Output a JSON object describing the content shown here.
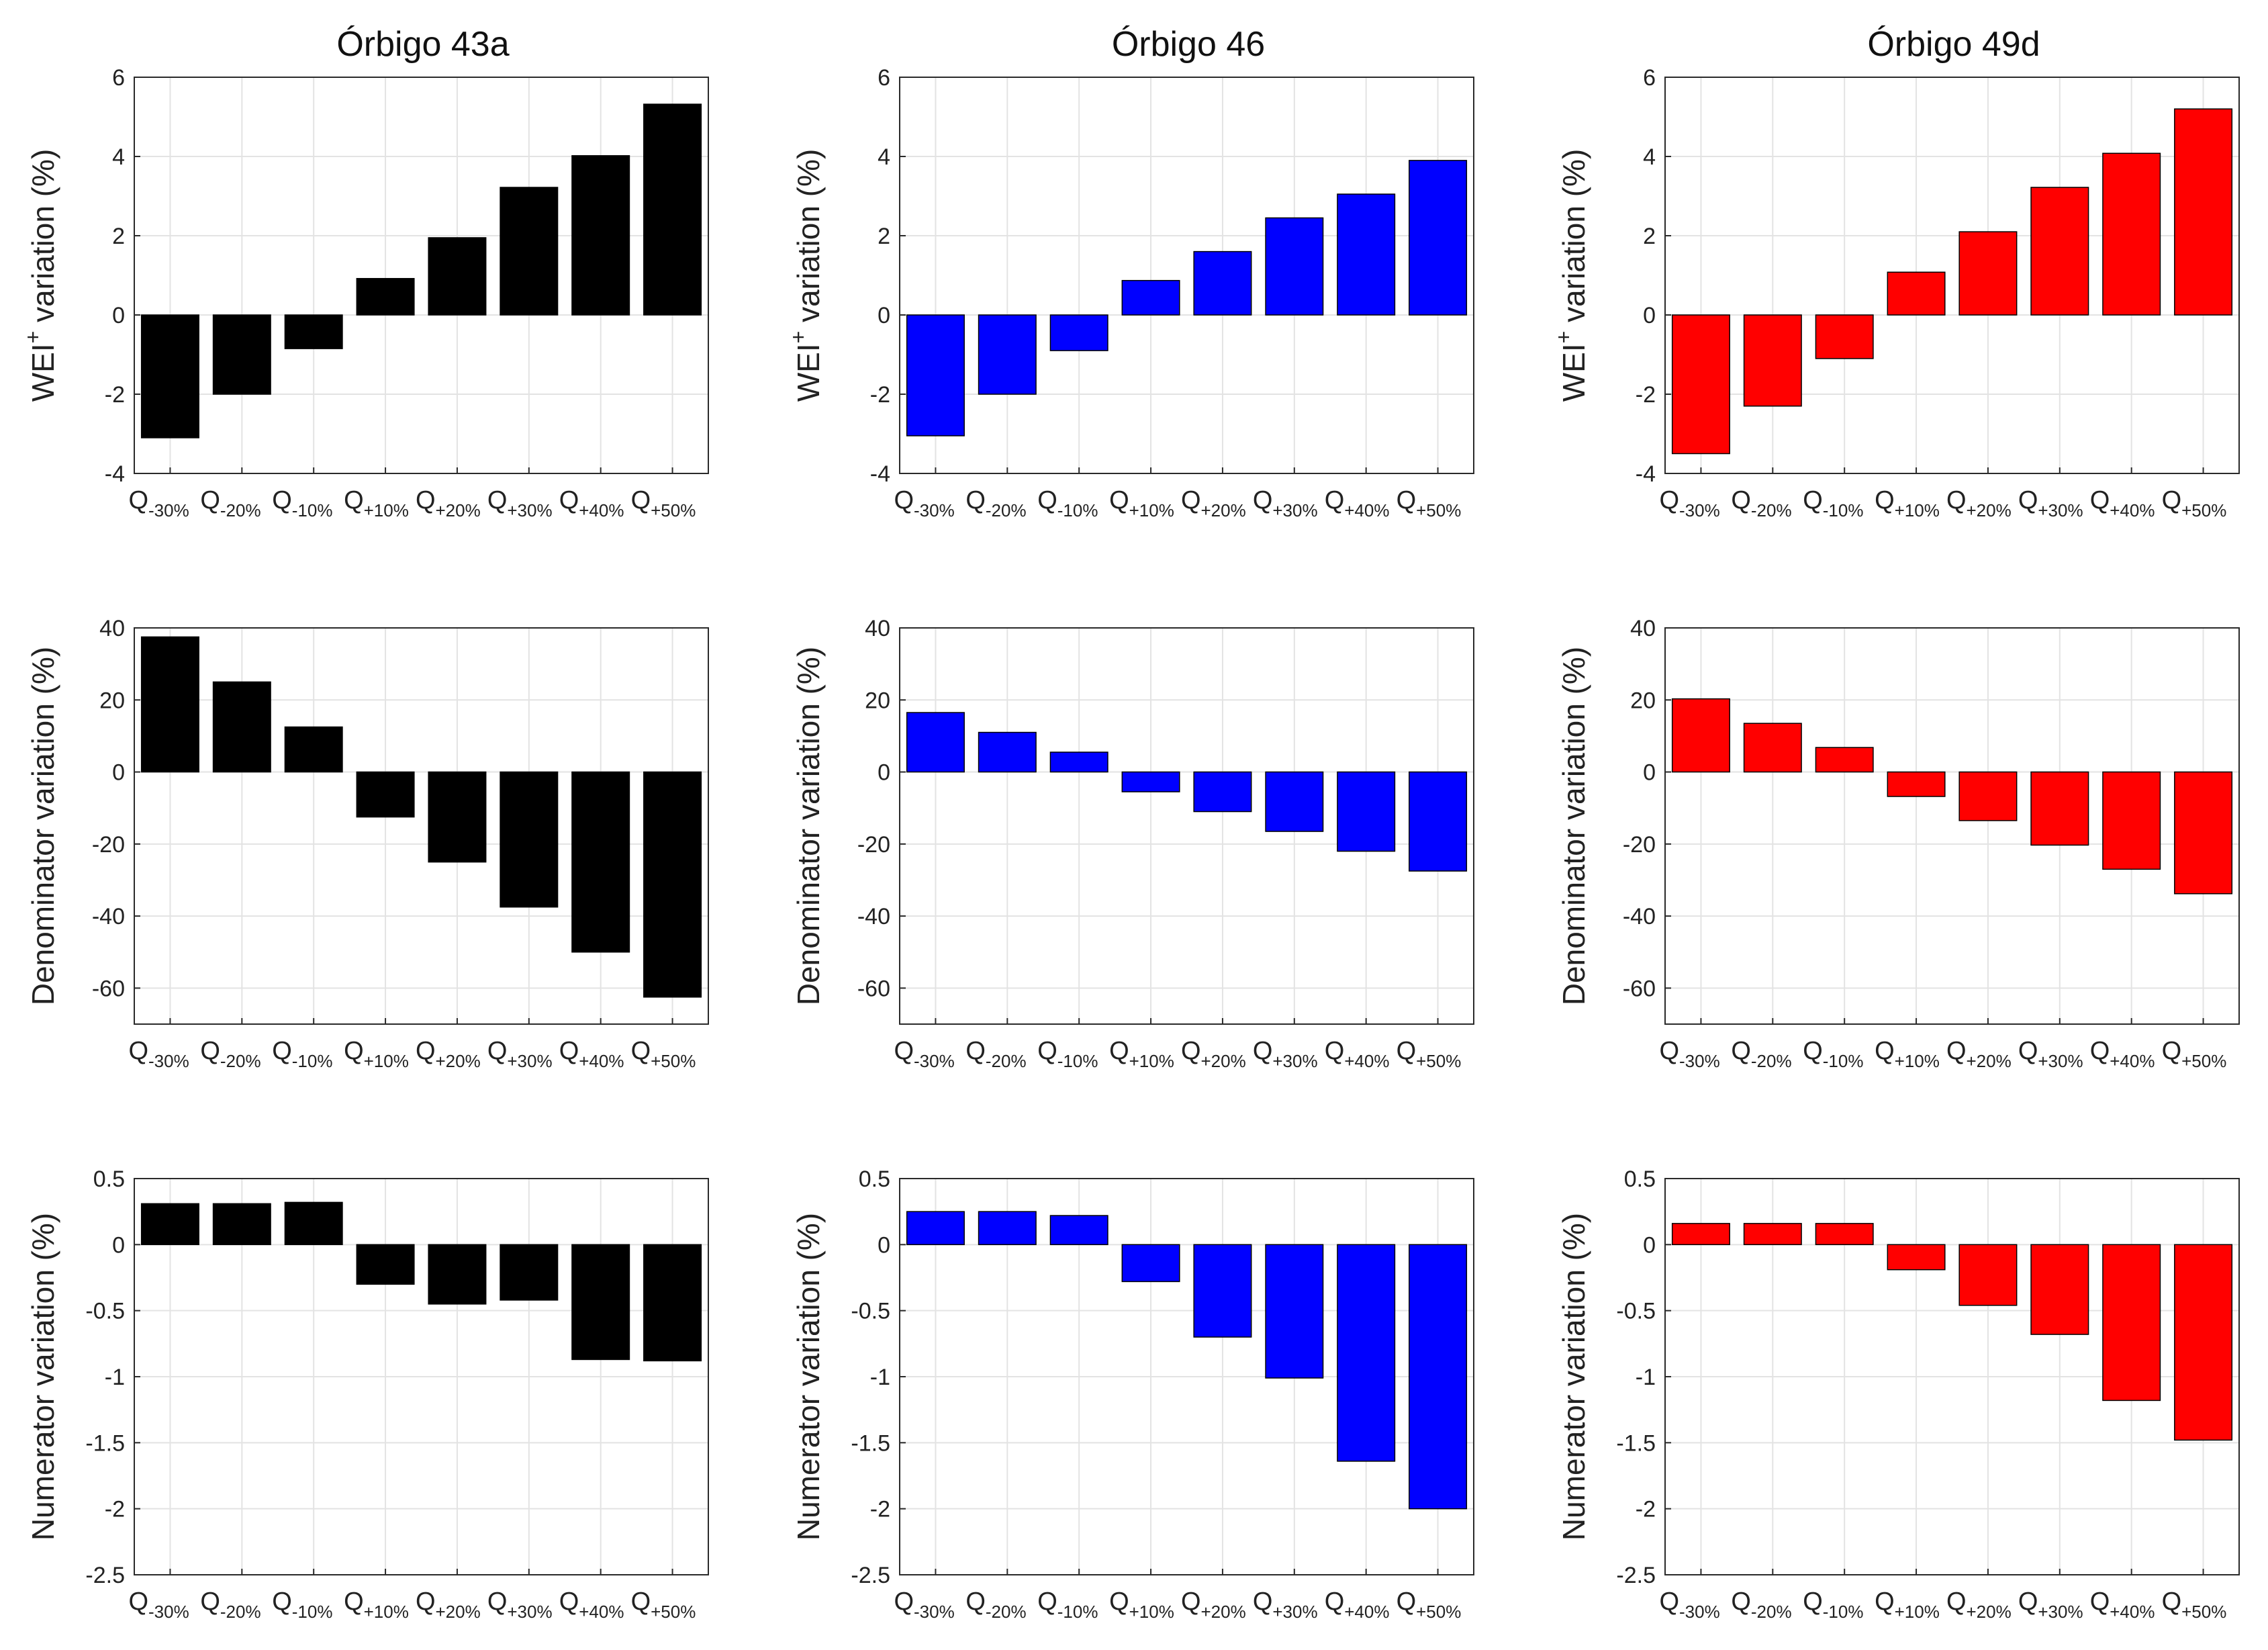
{
  "columns": [
    {
      "title": "Órbigo 43a",
      "color": "#000000"
    },
    {
      "title": "Órbigo 46",
      "color": "#0000ff"
    },
    {
      "title": "Órbigo 49d",
      "color": "#ff0000"
    }
  ],
  "category_labels": [
    {
      "base": "Q",
      "sub": "-30%"
    },
    {
      "base": "Q",
      "sub": "-20%"
    },
    {
      "base": "Q",
      "sub": "-10%"
    },
    {
      "base": "Q",
      "sub": "+10%"
    },
    {
      "base": "Q",
      "sub": "+20%"
    },
    {
      "base": "Q",
      "sub": "+30%"
    },
    {
      "base": "Q",
      "sub": "+40%"
    },
    {
      "base": "Q",
      "sub": "+50%"
    }
  ],
  "rows": [
    {
      "ylabel": {
        "pre": "WEI",
        "sup": "+",
        "post": " variation (%)"
      },
      "ylim": [
        -4,
        6
      ],
      "yticks": [
        -4,
        -2,
        0,
        2,
        4,
        6
      ],
      "ytick_labels": [
        "-4",
        "-2",
        "0",
        "2",
        "4",
        "6"
      ]
    },
    {
      "ylabel": {
        "pre": "Denominator variation (%)",
        "sup": "",
        "post": ""
      },
      "ylim": [
        -70,
        40
      ],
      "yticks": [
        -60,
        -40,
        -20,
        0,
        20,
        40
      ],
      "ytick_labels": [
        "-60",
        "-40",
        "-20",
        "0",
        "20",
        "40"
      ]
    },
    {
      "ylabel": {
        "pre": "Numerator variation (%)",
        "sup": "",
        "post": ""
      },
      "ylim": [
        -2.5,
        0.5
      ],
      "yticks": [
        -2.5,
        -2,
        -1.5,
        -1,
        -0.5,
        0,
        0.5
      ],
      "ytick_labels": [
        "-2.5",
        "-2",
        "-1.5",
        "-1",
        "-0.5",
        "0",
        "0.5"
      ]
    }
  ],
  "chart_data": [
    {
      "type": "bar",
      "row": 0,
      "col": 0,
      "categories": [
        "Q-30%",
        "Q-20%",
        "Q-10%",
        "Q+10%",
        "Q+20%",
        "Q+30%",
        "Q+40%",
        "Q+50%"
      ],
      "values": [
        -3.1,
        -2.0,
        -0.85,
        0.92,
        1.95,
        3.22,
        4.02,
        5.32
      ],
      "ylabel": "WEI+ variation (%)",
      "ylim": [
        -4,
        6
      ],
      "grid": true
    },
    {
      "type": "bar",
      "row": 0,
      "col": 1,
      "categories": [
        "Q-30%",
        "Q-20%",
        "Q-10%",
        "Q+10%",
        "Q+20%",
        "Q+30%",
        "Q+40%",
        "Q+50%"
      ],
      "values": [
        -3.05,
        -2.0,
        -0.9,
        0.87,
        1.6,
        2.45,
        3.05,
        3.9
      ],
      "ylabel": "WEI+ variation (%)",
      "ylim": [
        -4,
        6
      ],
      "grid": true
    },
    {
      "type": "bar",
      "row": 0,
      "col": 2,
      "categories": [
        "Q-30%",
        "Q-20%",
        "Q-10%",
        "Q+10%",
        "Q+20%",
        "Q+30%",
        "Q+40%",
        "Q+50%"
      ],
      "values": [
        -3.5,
        -2.3,
        -1.1,
        1.08,
        2.1,
        3.22,
        4.08,
        5.2
      ],
      "ylabel": "WEI+ variation (%)",
      "ylim": [
        -4,
        6
      ],
      "grid": true
    },
    {
      "type": "bar",
      "row": 1,
      "col": 0,
      "categories": [
        "Q-30%",
        "Q-20%",
        "Q-10%",
        "Q+10%",
        "Q+20%",
        "Q+30%",
        "Q+40%",
        "Q+50%"
      ],
      "values": [
        37.5,
        25.0,
        12.5,
        -12.5,
        -25.0,
        -37.5,
        -50.0,
        -62.5
      ],
      "ylabel": "Denominator variation (%)",
      "ylim": [
        -70,
        40
      ],
      "grid": true
    },
    {
      "type": "bar",
      "row": 1,
      "col": 1,
      "categories": [
        "Q-30%",
        "Q-20%",
        "Q-10%",
        "Q+10%",
        "Q+20%",
        "Q+30%",
        "Q+40%",
        "Q+50%"
      ],
      "values": [
        16.5,
        11.0,
        5.5,
        -5.5,
        -11.0,
        -16.5,
        -22.0,
        -27.5
      ],
      "ylabel": "Denominator variation (%)",
      "ylim": [
        -70,
        40
      ],
      "grid": true
    },
    {
      "type": "bar",
      "row": 1,
      "col": 2,
      "categories": [
        "Q-30%",
        "Q-20%",
        "Q-10%",
        "Q+10%",
        "Q+20%",
        "Q+30%",
        "Q+40%",
        "Q+50%"
      ],
      "values": [
        20.3,
        13.5,
        6.8,
        -6.8,
        -13.5,
        -20.3,
        -27.0,
        -33.8
      ],
      "ylabel": "Denominator variation (%)",
      "ylim": [
        -70,
        40
      ],
      "grid": true
    },
    {
      "type": "bar",
      "row": 2,
      "col": 0,
      "categories": [
        "Q-30%",
        "Q-20%",
        "Q-10%",
        "Q+10%",
        "Q+20%",
        "Q+30%",
        "Q+40%",
        "Q+50%"
      ],
      "values": [
        0.31,
        0.31,
        0.32,
        -0.3,
        -0.45,
        -0.42,
        -0.87,
        -0.88
      ],
      "ylabel": "Numerator variation (%)",
      "ylim": [
        -2.5,
        0.5
      ],
      "grid": true
    },
    {
      "type": "bar",
      "row": 2,
      "col": 1,
      "categories": [
        "Q-30%",
        "Q-20%",
        "Q-10%",
        "Q+10%",
        "Q+20%",
        "Q+30%",
        "Q+40%",
        "Q+50%"
      ],
      "values": [
        0.25,
        0.25,
        0.22,
        -0.28,
        -0.7,
        -1.01,
        -1.64,
        -2.0
      ],
      "ylabel": "Numerator variation (%)",
      "ylim": [
        -2.5,
        0.5
      ],
      "grid": true
    },
    {
      "type": "bar",
      "row": 2,
      "col": 2,
      "categories": [
        "Q-30%",
        "Q-20%",
        "Q-10%",
        "Q+10%",
        "Q+20%",
        "Q+30%",
        "Q+40%",
        "Q+50%"
      ],
      "values": [
        0.16,
        0.16,
        0.16,
        -0.19,
        -0.46,
        -0.68,
        -1.18,
        -1.48
      ],
      "ylabel": "Numerator variation (%)",
      "ylim": [
        -2.5,
        0.5
      ],
      "grid": true
    }
  ]
}
